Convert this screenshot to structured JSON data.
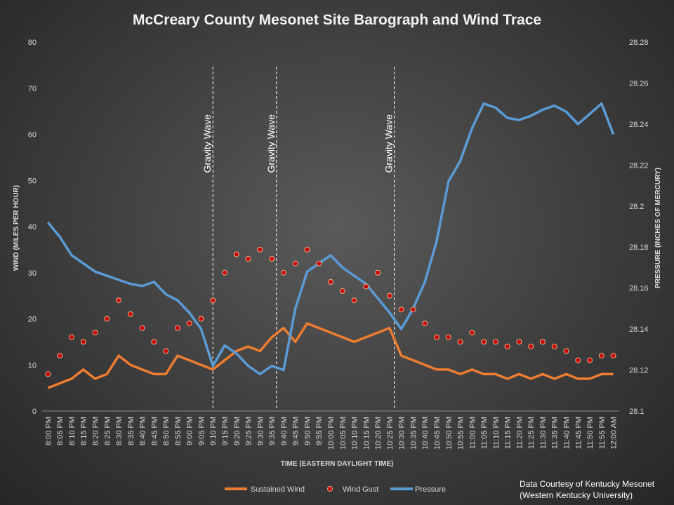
{
  "chart_data": {
    "type": "line",
    "title": "McCreary County Mesonet Site Barograph and Wind Trace",
    "xlabel": "TIME (EASTERN DAYLIGHT TIME)",
    "ylabel_left": "WIND (MILES PER HOUR)",
    "ylabel_right": "PRESSURE (INCHES OF MERCURY)",
    "ylim_left": [
      0,
      80
    ],
    "ylim_right": [
      28.1,
      28.28
    ],
    "yticks_left": [
      "0",
      "10",
      "20",
      "30",
      "40",
      "50",
      "60",
      "70",
      "80"
    ],
    "yticks_right": [
      "28.1",
      "28.12",
      "28.14",
      "28.16",
      "28.18",
      "28.2",
      "28.22",
      "28.24",
      "28.26",
      "28.28"
    ],
    "categories": [
      "8:00 PM",
      "8:05 PM",
      "8:10 PM",
      "8:15 PM",
      "8:20 PM",
      "8:25 PM",
      "8:30 PM",
      "8:35 PM",
      "8:40 PM",
      "8:45 PM",
      "8:50 PM",
      "8:55 PM",
      "9:00 PM",
      "9:05 PM",
      "9:10 PM",
      "9:15 PM",
      "9:20 PM",
      "9:25 PM",
      "9:30 PM",
      "9:35 PM",
      "9:40 PM",
      "9:45 PM",
      "9:50 PM",
      "9:55 PM",
      "10:00 PM",
      "10:05 PM",
      "10:10 PM",
      "10:15 PM",
      "10:20 PM",
      "10:25 PM",
      "10:30 PM",
      "10:35 PM",
      "10:40 PM",
      "10:45 PM",
      "10:50 PM",
      "10:55 PM",
      "11:00 PM",
      "11:05 PM",
      "11:10 PM",
      "11:15 PM",
      "11:20 PM",
      "11:25 PM",
      "11:30 PM",
      "11:35 PM",
      "11:40 PM",
      "11:45 PM",
      "11:50 PM",
      "11:55 PM",
      "12:00 AM"
    ],
    "series": [
      {
        "name": "Sustained Wind",
        "color": "#ed7d31",
        "values": [
          5,
          6,
          7,
          9,
          7,
          8,
          12,
          10,
          9,
          8,
          8,
          12,
          11,
          10,
          9,
          11,
          13,
          14,
          13,
          16,
          18,
          15,
          19,
          18,
          17,
          16,
          15,
          16,
          17,
          18,
          12,
          11,
          10,
          9,
          9,
          8,
          9,
          8,
          8,
          7,
          8,
          7,
          8,
          7,
          8,
          7,
          7,
          8,
          8
        ]
      },
      {
        "name": "Wind Gust",
        "color": "#c00000",
        "values": [
          8,
          12,
          16,
          15,
          17,
          20,
          24,
          21,
          18,
          15,
          13,
          18,
          19,
          20,
          24,
          30,
          34,
          33,
          35,
          33,
          30,
          32,
          35,
          32,
          28,
          26,
          24,
          27,
          30,
          25,
          22,
          22,
          19,
          16,
          16,
          15,
          17,
          15,
          15,
          14,
          15,
          14,
          15,
          14,
          13,
          11,
          11,
          12,
          12
        ]
      },
      {
        "name": "Pressure",
        "color": "#5b9bd5",
        "values": [
          28.192,
          28.185,
          28.176,
          28.172,
          28.168,
          28.166,
          28.164,
          28.162,
          28.161,
          28.163,
          28.157,
          28.154,
          28.148,
          28.14,
          28.122,
          28.132,
          28.128,
          28.122,
          28.118,
          28.122,
          28.12,
          28.15,
          28.168,
          28.172,
          28.176,
          28.17,
          28.166,
          28.162,
          28.155,
          28.148,
          28.14,
          28.15,
          28.163,
          28.183,
          28.212,
          28.222,
          28.238,
          28.25,
          28.248,
          28.243,
          28.242,
          28.244,
          28.247,
          28.249,
          28.246,
          28.24,
          28.245,
          28.25,
          28.235
        ]
      }
    ],
    "annotations": [
      {
        "text": "Gravity Wave",
        "x": "9:10 PM"
      },
      {
        "text": "Gravity Wave",
        "x": "9:37 PM"
      },
      {
        "text": "Gravity Wave",
        "x": "10:27 PM"
      }
    ],
    "legend": "bottom",
    "grid": false
  },
  "credit": {
    "line1": "Data Courtesy of Kentucky Mesonet",
    "line2": "(Western Kentucky University)"
  }
}
